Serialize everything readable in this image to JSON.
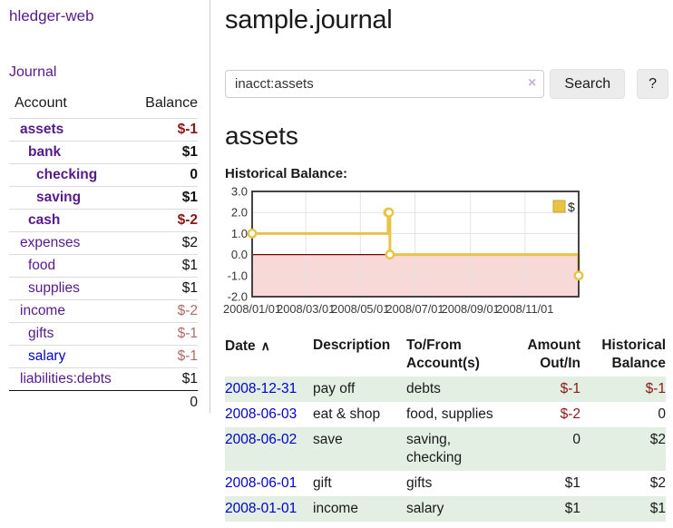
{
  "colors": {
    "link_purple": "#551a8b",
    "link_blue": "#0000cc",
    "negative_strong": "#8d1616",
    "negative_muted": "#b06a6a",
    "row_green": "#e2efe2",
    "chart_line": "#e9c345",
    "chart_marker_fill": "#ffffff",
    "chart_negative_region": "#f9d8d8",
    "chart_zero_line": "#7a0000",
    "chart_grid": "#e3e3e3",
    "chart_border": "#444444"
  },
  "sidebar": {
    "brand": "hledger-web",
    "journal_link": "Journal",
    "accounts": {
      "col_account": "Account",
      "col_balance": "Balance",
      "rows": [
        {
          "name": "assets",
          "balance": "$-1",
          "depth": 0,
          "bold": true,
          "neg": "strong",
          "link": "purple"
        },
        {
          "name": "bank",
          "balance": "$1",
          "depth": 1,
          "bold": true,
          "neg": null,
          "link": "purple"
        },
        {
          "name": "checking",
          "balance": "0",
          "depth": 2,
          "bold": true,
          "neg": null,
          "link": "purple"
        },
        {
          "name": "saving",
          "balance": "$1",
          "depth": 2,
          "bold": true,
          "neg": null,
          "link": "purple"
        },
        {
          "name": "cash",
          "balance": "$-2",
          "depth": 1,
          "bold": true,
          "neg": "strong",
          "link": "purple"
        },
        {
          "name": "expenses",
          "balance": "$2",
          "depth": 0,
          "bold": false,
          "neg": null,
          "link": "purple"
        },
        {
          "name": "food",
          "balance": "$1",
          "depth": 1,
          "bold": false,
          "neg": null,
          "link": "purple"
        },
        {
          "name": "supplies",
          "balance": "$1",
          "depth": 1,
          "bold": false,
          "neg": null,
          "link": "purple"
        },
        {
          "name": "income",
          "balance": "$-2",
          "depth": 0,
          "bold": false,
          "neg": "muted",
          "link": "purple"
        },
        {
          "name": "gifts",
          "balance": "$-1",
          "depth": 1,
          "bold": false,
          "neg": "muted",
          "link": "purple"
        },
        {
          "name": "salary",
          "balance": "$-1",
          "depth": 1,
          "bold": false,
          "neg": "muted",
          "link": "blue"
        },
        {
          "name": "liabilities:debts",
          "balance": "$1",
          "depth": 0,
          "bold": false,
          "neg": null,
          "link": "purple"
        }
      ],
      "total": "0"
    }
  },
  "main": {
    "title": "sample.journal",
    "search": {
      "value": "inacct:assets",
      "clear_icon": "×",
      "button_label": "Search",
      "help_label": "?"
    },
    "account_heading": "assets",
    "chart_title": "Historical Balance:"
  },
  "chart_data": {
    "type": "line",
    "step": true,
    "title": "Historical Balance:",
    "legend": [
      {
        "label": "$",
        "color": "#e9c345"
      }
    ],
    "legend_position": "top-right",
    "grid": true,
    "ylim": [
      -2,
      3
    ],
    "y_tick_labels": [
      "3.0",
      "2.0",
      "1.0",
      "0.0",
      "-1.0",
      "-2.0"
    ],
    "y_tick_values": [
      3,
      2,
      1,
      0,
      -1,
      -2
    ],
    "x_range_days": [
      0,
      365
    ],
    "x_tick_days": [
      0,
      60,
      121,
      182,
      244,
      305
    ],
    "x_tick_labels": [
      "2008/01/01",
      "2008/03/01",
      "2008/05/01",
      "2008/07/01",
      "2008/09/01",
      "2008/11/01"
    ],
    "points": [
      {
        "date": "2008-01-01",
        "day": 0,
        "value": 1
      },
      {
        "date": "2008-06-01",
        "day": 152,
        "value": 2
      },
      {
        "date": "2008-06-02",
        "day": 153,
        "value": 2
      },
      {
        "date": "2008-06-03",
        "day": 154,
        "value": 0
      },
      {
        "date": "2008-12-31",
        "day": 365,
        "value": -1
      }
    ]
  },
  "register": {
    "headers": {
      "date": "Date",
      "sort_icon": "∧",
      "description": "Description",
      "accounts": "To/From\nAccount(s)",
      "amount": "Amount\nOut/In",
      "balance": "Historical\nBalance"
    },
    "rows": [
      {
        "date": "2008-12-31",
        "description": "pay off",
        "accounts": "debts",
        "amount": "$-1",
        "amount_neg": true,
        "balance": "$-1",
        "balance_neg": true
      },
      {
        "date": "2008-06-03",
        "description": "eat & shop",
        "accounts": "food, supplies",
        "amount": "$-2",
        "amount_neg": true,
        "balance": "0",
        "balance_neg": false
      },
      {
        "date": "2008-06-02",
        "description": "save",
        "accounts": "saving,\nchecking",
        "amount": "0",
        "amount_neg": false,
        "balance": "$2",
        "balance_neg": false
      },
      {
        "date": "2008-06-01",
        "description": "gift",
        "accounts": "gifts",
        "amount": "$1",
        "amount_neg": false,
        "balance": "$2",
        "balance_neg": false
      },
      {
        "date": "2008-01-01",
        "description": "income",
        "accounts": "salary",
        "amount": "$1",
        "amount_neg": false,
        "balance": "$1",
        "balance_neg": false
      }
    ]
  }
}
